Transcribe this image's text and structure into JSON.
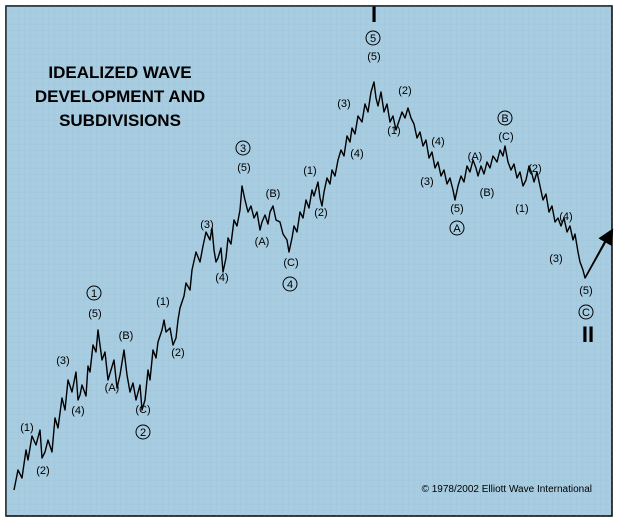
{
  "title": {
    "line1": "IDEALIZED WAVE",
    "line2": "DEVELOPMENT AND",
    "line3": "SUBDIVISIONS"
  },
  "copyright": "© 1978/2002 Elliott Wave International",
  "roman_labels": {
    "top": "I",
    "bottom": "II"
  },
  "colors": {
    "background": "#a8cce0",
    "grid": "#7fb0cc",
    "line": "#000000",
    "border": "#000000"
  },
  "labels": {
    "minor": [
      "(1)",
      "(2)",
      "(3)",
      "(4)",
      "(5)",
      "(A)",
      "(B)",
      "(C)",
      "(1)",
      "(2)",
      "(3)",
      "(4)",
      "(5)",
      "(A)",
      "(B)",
      "(C)",
      "(1)",
      "(2)",
      "(3)",
      "(4)",
      "(5)",
      "(1)",
      "(2)",
      "(3)",
      "(4)",
      "(5)",
      "(A)",
      "(B)",
      "(C)",
      "(1)",
      "(2)",
      "(3)",
      "(4)",
      "(5)"
    ],
    "circled": [
      "1",
      "2",
      "3",
      "4",
      "5",
      "A",
      "B",
      "C"
    ]
  },
  "arrow": "up-right-arrow"
}
